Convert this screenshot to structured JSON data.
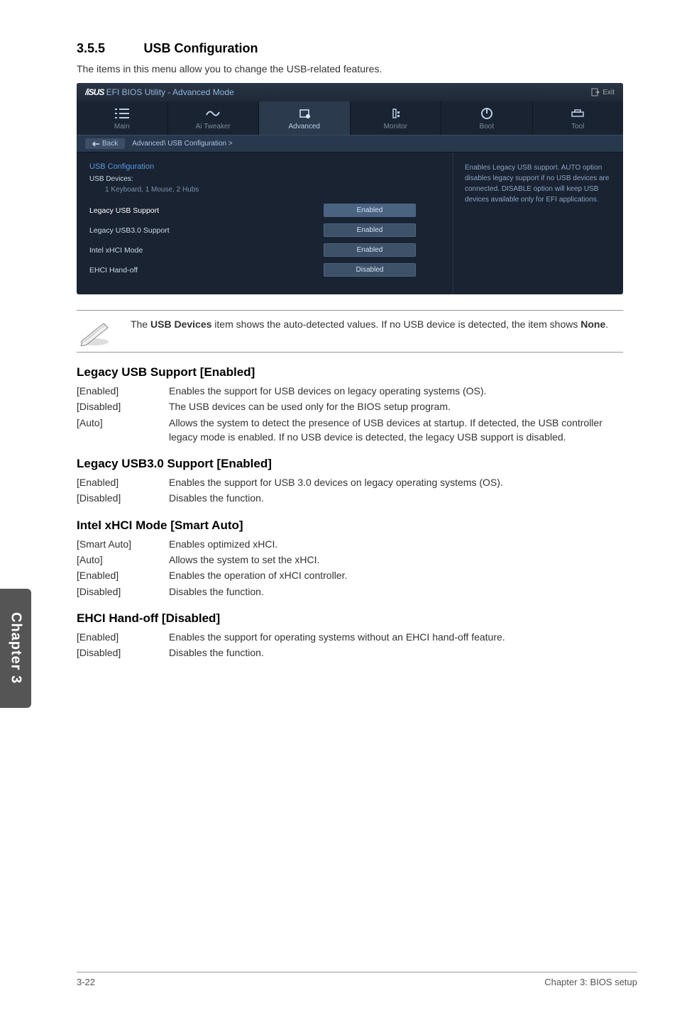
{
  "section": {
    "number": "3.5.5",
    "title": "USB Configuration"
  },
  "intro": "The items in this menu allow you to change the USB-related features.",
  "bios": {
    "title_logo": "/iSUS",
    "title_rest": " EFI BIOS Utility - Advanced Mode",
    "exit_label": "Exit",
    "tabs": [
      {
        "label": "Main"
      },
      {
        "label": "Ai  Tweaker"
      },
      {
        "label": "Advanced"
      },
      {
        "label": "Monitor"
      },
      {
        "label": "Boot"
      },
      {
        "label": "Tool"
      }
    ],
    "back_label": "Back",
    "breadcrumb_path": "Advanced\\  USB Configuration  >",
    "heading": "USB Configuration",
    "sub_heading": "USB Devices:",
    "devices_detail": "1 Keyboard, 1 Mouse, 2 Hubs",
    "rows": [
      {
        "label": "Legacy USB Support",
        "value": "Enabled",
        "selected": true
      },
      {
        "label": "Legacy USB3.0 Support",
        "value": "Enabled",
        "selected": false
      },
      {
        "label": "Intel xHCI Mode",
        "value": "Enabled",
        "selected": false
      },
      {
        "label": "EHCI Hand-off",
        "value": "Disabled",
        "selected": false
      }
    ],
    "help_text": "Enables Legacy USB support. AUTO option disables legacy support if no USB devices are connected. DISABLE option will keep USB devices available only for EFI applications."
  },
  "note": {
    "prefix": "The ",
    "bold1": "USB Devices",
    "mid": " item shows the auto-detected values. If no USB device is detected, the item shows ",
    "bold2": "None",
    "suffix": "."
  },
  "settings": [
    {
      "title": "Legacy USB Support [Enabled]",
      "rows": [
        {
          "key": "[Enabled]",
          "val": "Enables the support for USB devices on legacy operating systems (OS)."
        },
        {
          "key": "[Disabled]",
          "val": "The USB devices can be used only for the BIOS setup program."
        },
        {
          "key": "[Auto]",
          "val": "Allows the system to detect the presence of USB devices at startup. If detected, the USB controller legacy mode is enabled. If no USB device is detected, the legacy USB support is disabled."
        }
      ]
    },
    {
      "title": "Legacy USB3.0 Support [Enabled]",
      "rows": [
        {
          "key": "[Enabled]",
          "val": "Enables the support for USB 3.0 devices on legacy operating systems (OS)."
        },
        {
          "key": "[Disabled]",
          "val": "Disables the function."
        }
      ]
    },
    {
      "title": "Intel xHCI Mode [Smart Auto]",
      "rows": [
        {
          "key": "[Smart Auto]",
          "val": "Enables optimized xHCI."
        },
        {
          "key": "[Auto]",
          "val": "Allows the system to set the xHCI."
        },
        {
          "key": "[Enabled]",
          "val": "Enables the operation of xHCI controller."
        },
        {
          "key": "[Disabled]",
          "val": "Disables the function."
        }
      ]
    },
    {
      "title": "EHCI Hand-off [Disabled]",
      "rows": [
        {
          "key": "[Enabled]",
          "val": "Enables the support for operating systems without an EHCI hand-off feature."
        },
        {
          "key": "[Disabled]",
          "val": "Disables the function."
        }
      ]
    }
  ],
  "side_tab": "Chapter 3",
  "footer": {
    "left": "3-22",
    "right": "Chapter 3: BIOS setup"
  },
  "colors": {
    "bios_bg": "#1a2332",
    "bios_accent": "#5a9ad6",
    "bios_text": "#c8d8e8",
    "tab_bg": "#555"
  }
}
